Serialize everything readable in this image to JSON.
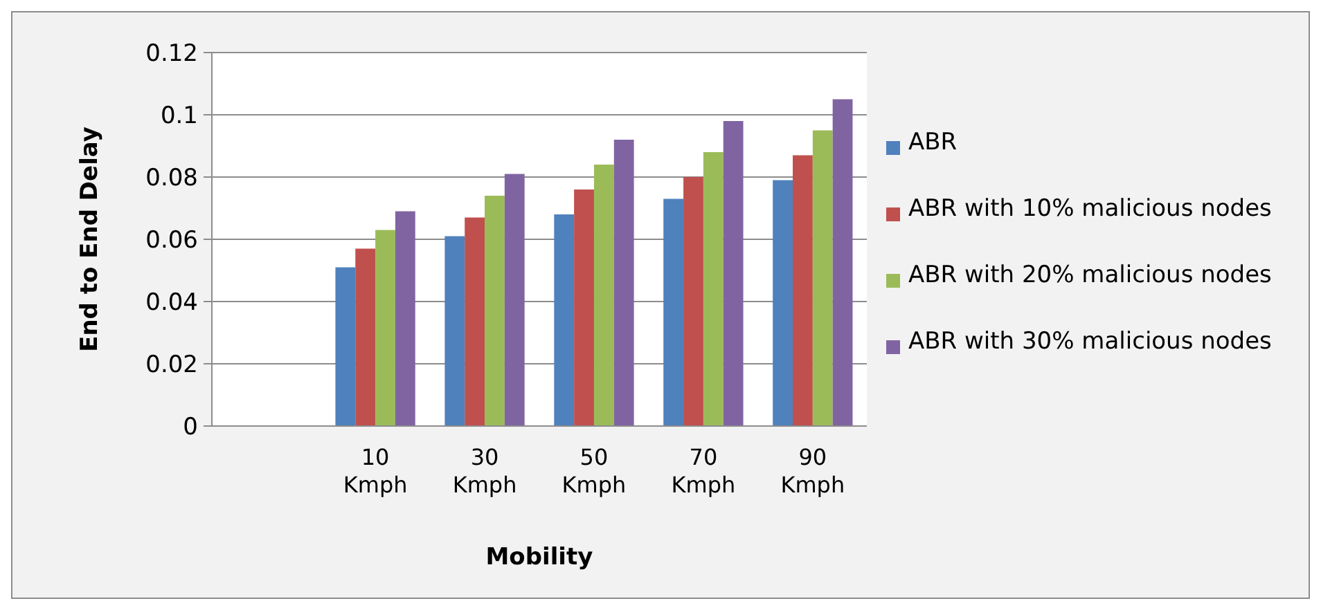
{
  "chart_data": {
    "type": "bar",
    "xlabel": "Mobility",
    "ylabel": "End to End Delay",
    "categories": [
      null,
      "10 Kmph",
      "30 Kmph",
      "50 Kmph",
      "70 Kmph",
      "90 Kmph"
    ],
    "series": [
      {
        "name": "ABR",
        "color": "#4f81bd",
        "values": [
          null,
          0.051,
          0.061,
          0.068,
          0.073,
          0.079
        ]
      },
      {
        "name": "ABR with 10% malicious nodes",
        "color": "#c0504d",
        "values": [
          null,
          0.057,
          0.067,
          0.076,
          0.08,
          0.087
        ]
      },
      {
        "name": "ABR with 20% malicious nodes",
        "color": "#9bbb59",
        "values": [
          null,
          0.063,
          0.074,
          0.084,
          0.088,
          0.095
        ]
      },
      {
        "name": "ABR with 30% malicious nodes",
        "color": "#8064a2",
        "values": [
          null,
          0.069,
          0.081,
          0.092,
          0.098,
          0.105
        ]
      }
    ],
    "ylim": [
      0,
      0.12
    ],
    "yticks": [
      0,
      0.02,
      0.04,
      0.06,
      0.08,
      0.1,
      0.12
    ],
    "grid": "y",
    "legend": "right"
  }
}
